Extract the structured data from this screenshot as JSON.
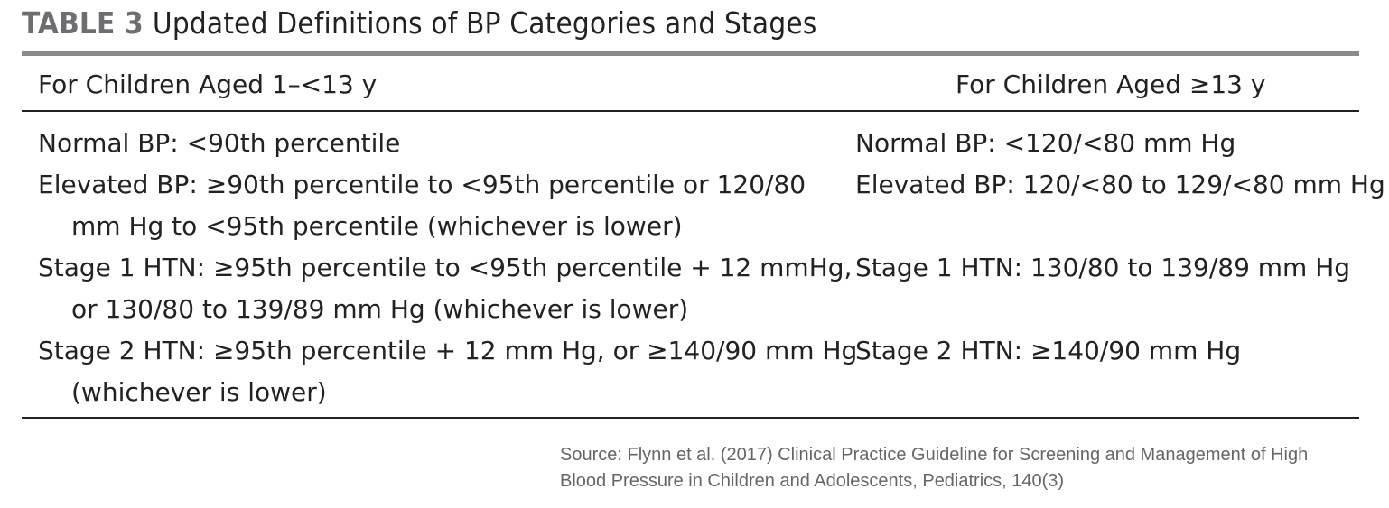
{
  "table": {
    "label": "TABLE 3",
    "title": "Updated Definitions of BP Categories and Stages",
    "columns": {
      "left_header": "For Children Aged 1–<13 y",
      "right_header": "For Children Aged ≥13 y"
    },
    "left_rows": [
      {
        "lines": [
          "Normal BP: <90th percentile"
        ]
      },
      {
        "lines": [
          "Elevated BP: ≥90th percentile to <95th percentile or 120/80",
          "mm Hg to <95th percentile (whichever is lower)"
        ]
      },
      {
        "lines": [
          "Stage 1 HTN: ≥95th percentile to <95th percentile + 12 mmHg,",
          "or 130/80 to 139/89 mm Hg (whichever is lower)"
        ]
      },
      {
        "lines": [
          "Stage 2 HTN: ≥95th percentile + 12 mm Hg, or ≥140/90 mm Hg",
          "(whichever is lower)"
        ]
      }
    ],
    "right_rows": [
      {
        "lines": [
          "Normal BP: <120/<80 mm Hg"
        ]
      },
      {
        "lines": [
          "Elevated BP: 120/<80 to 129/<80 mm Hg",
          ""
        ]
      },
      {
        "lines": [
          "Stage 1 HTN: 130/80 to 139/89 mm Hg",
          ""
        ]
      },
      {
        "lines": [
          "Stage 2 HTN: ≥140/90 mm Hg",
          ""
        ]
      }
    ]
  },
  "source": {
    "line1": "Source: Flynn et al. (2017) Clinical Practice Guideline for Screening and Management of High",
    "line2": "Blood Pressure in Children and Adolescents, Pediatrics, 140(3)"
  }
}
